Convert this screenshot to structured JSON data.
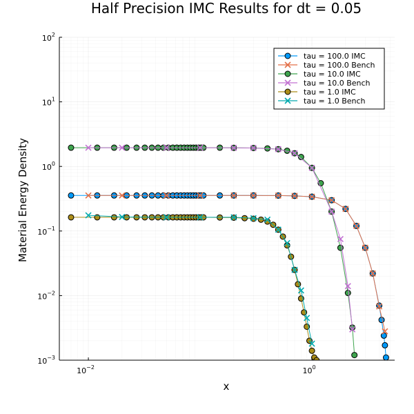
{
  "chart_data": {
    "type": "line",
    "title": "Half Precision IMC Results for dt = 0.05",
    "xlabel": "x",
    "ylabel": "Material Energy Density",
    "xscale": "log",
    "yscale": "log",
    "xlim": [
      0.0055,
      5.5
    ],
    "ylim": [
      0.001,
      100
    ],
    "x_ticks": [
      {
        "value": 0.01,
        "base": "10",
        "exp": "−2"
      },
      {
        "value": 1,
        "base": "10",
        "exp": "0"
      }
    ],
    "y_ticks": [
      {
        "value": 0.001,
        "base": "10",
        "exp": "−3"
      },
      {
        "value": 0.01,
        "base": "10",
        "exp": "−2"
      },
      {
        "value": 0.1,
        "base": "10",
        "exp": "−1"
      },
      {
        "value": 1,
        "base": "10",
        "exp": "0"
      },
      {
        "value": 10,
        "base": "10",
        "exp": "1"
      },
      {
        "value": 100,
        "base": "10",
        "exp": "2"
      }
    ],
    "grid": true,
    "legend_position": "top-right",
    "colors": {
      "blue": "#009AFA",
      "orange": "#E36F47",
      "green": "#3EA44E",
      "purple": "#C271D2",
      "gold": "#AC8D18",
      "teal": "#00A9AD"
    },
    "series": [
      {
        "name": "tau = 100.0 IMC",
        "marker": "circle",
        "color": "#009AFA",
        "x": [
          0.007,
          0.012,
          0.017,
          0.022,
          0.027,
          0.032,
          0.037,
          0.042,
          0.047,
          0.052,
          0.057,
          0.062,
          0.067,
          0.072,
          0.077,
          0.082,
          0.087,
          0.092,
          0.097,
          0.102,
          0.107,
          0.15,
          0.2,
          0.3,
          0.5,
          0.7,
          1.0,
          1.5,
          2.0,
          2.5,
          3.0,
          3.5,
          4.0,
          4.2,
          4.4,
          4.5,
          4.6
        ],
        "y": [
          0.355,
          0.355,
          0.355,
          0.355,
          0.355,
          0.355,
          0.355,
          0.355,
          0.355,
          0.355,
          0.355,
          0.355,
          0.355,
          0.355,
          0.355,
          0.355,
          0.355,
          0.355,
          0.355,
          0.355,
          0.355,
          0.355,
          0.355,
          0.355,
          0.354,
          0.35,
          0.34,
          0.3,
          0.22,
          0.12,
          0.055,
          0.022,
          0.007,
          0.0042,
          0.0024,
          0.0017,
          0.0011
        ]
      },
      {
        "name": "tau = 100.0 Bench",
        "marker": "x",
        "color": "#E36F47",
        "x": [
          0.01,
          0.02,
          0.05,
          0.1,
          0.2,
          0.3,
          0.5,
          0.7,
          1.0,
          1.5,
          2.0,
          2.5,
          3.0,
          3.5,
          4.0,
          4.5
        ],
        "y": [
          0.355,
          0.355,
          0.355,
          0.355,
          0.355,
          0.355,
          0.354,
          0.35,
          0.34,
          0.3,
          0.22,
          0.12,
          0.055,
          0.022,
          0.0068,
          0.0028
        ]
      },
      {
        "name": "tau = 10.0 IMC",
        "marker": "circle",
        "color": "#3EA44E",
        "x": [
          0.007,
          0.012,
          0.017,
          0.022,
          0.027,
          0.032,
          0.037,
          0.042,
          0.047,
          0.052,
          0.057,
          0.062,
          0.067,
          0.072,
          0.077,
          0.082,
          0.087,
          0.092,
          0.097,
          0.102,
          0.107,
          0.15,
          0.2,
          0.3,
          0.4,
          0.5,
          0.6,
          0.7,
          0.8,
          1.0,
          1.2,
          1.5,
          1.8,
          2.1,
          2.3,
          2.4
        ],
        "y": [
          1.95,
          1.95,
          1.95,
          1.95,
          1.95,
          1.95,
          1.95,
          1.95,
          1.95,
          1.95,
          1.95,
          1.95,
          1.95,
          1.95,
          1.95,
          1.95,
          1.95,
          1.95,
          1.95,
          1.95,
          1.95,
          1.95,
          1.94,
          1.93,
          1.9,
          1.85,
          1.75,
          1.6,
          1.4,
          0.95,
          0.55,
          0.2,
          0.055,
          0.011,
          0.0032,
          0.0012
        ]
      },
      {
        "name": "tau = 10.0 Bench",
        "marker": "x",
        "color": "#C271D2",
        "x": [
          0.01,
          0.02,
          0.05,
          0.1,
          0.2,
          0.3,
          0.5,
          0.7,
          1.0,
          1.5,
          1.8,
          2.1,
          2.3
        ],
        "y": [
          1.95,
          1.95,
          1.95,
          1.95,
          1.94,
          1.93,
          1.85,
          1.6,
          0.95,
          0.2,
          0.075,
          0.014,
          0.003
        ]
      },
      {
        "name": "tau = 1.0 IMC",
        "marker": "circle",
        "color": "#AC8D18",
        "x": [
          0.007,
          0.012,
          0.017,
          0.022,
          0.027,
          0.032,
          0.037,
          0.042,
          0.047,
          0.052,
          0.057,
          0.062,
          0.067,
          0.072,
          0.077,
          0.082,
          0.087,
          0.092,
          0.097,
          0.102,
          0.107,
          0.15,
          0.2,
          0.25,
          0.3,
          0.35,
          0.4,
          0.45,
          0.5,
          0.55,
          0.6,
          0.65,
          0.7,
          0.75,
          0.8,
          0.85,
          0.9,
          0.95,
          1.0,
          1.05,
          1.1
        ],
        "y": [
          0.163,
          0.163,
          0.163,
          0.163,
          0.163,
          0.163,
          0.163,
          0.163,
          0.163,
          0.163,
          0.163,
          0.163,
          0.163,
          0.163,
          0.163,
          0.163,
          0.163,
          0.163,
          0.163,
          0.163,
          0.163,
          0.162,
          0.161,
          0.158,
          0.155,
          0.15,
          0.14,
          0.125,
          0.105,
          0.082,
          0.06,
          0.04,
          0.025,
          0.015,
          0.009,
          0.0055,
          0.0033,
          0.002,
          0.0014,
          0.0011,
          0.001
        ]
      },
      {
        "name": "tau = 1.0 Bench",
        "marker": "x",
        "color": "#00A9AD",
        "x": [
          0.01,
          0.02,
          0.05,
          0.1,
          0.2,
          0.3,
          0.4,
          0.5,
          0.6,
          0.7,
          0.8,
          0.9,
          1.0
        ],
        "y": [
          0.175,
          0.165,
          0.163,
          0.163,
          0.163,
          0.158,
          0.15,
          0.105,
          0.065,
          0.025,
          0.012,
          0.0045,
          0.0018
        ]
      }
    ]
  }
}
